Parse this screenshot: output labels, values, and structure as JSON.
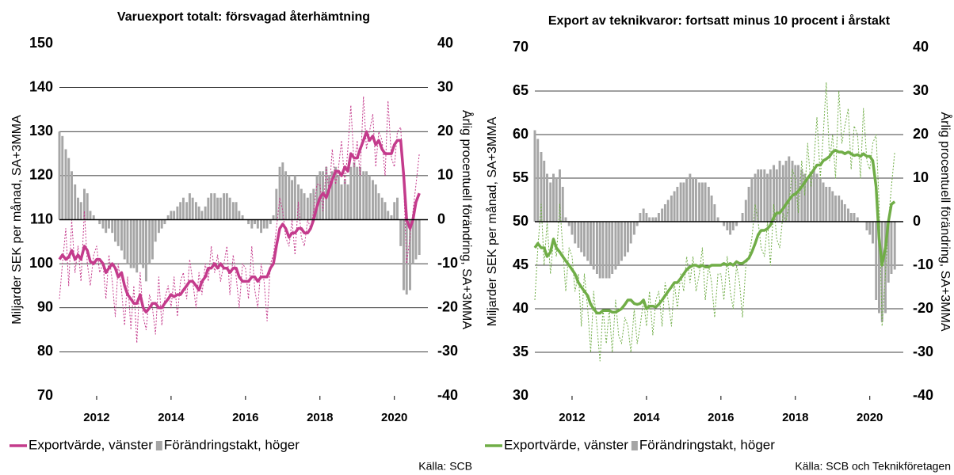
{
  "chart_data": [
    {
      "type": "combo",
      "title": "Varuexport totalt: försvagad återhämtning",
      "ylabel": "Miljarder SEK per månad, SA+3MMA",
      "y2label": "Årlig procentuell förändring, SA+3MMA",
      "source": "Källa: SCB",
      "xlim": [
        2011,
        2020.9
      ],
      "xticks": [
        2012,
        2014,
        2016,
        2018,
        2020
      ],
      "ylim": [
        70,
        150
      ],
      "yticks": [
        70,
        80,
        90,
        100,
        110,
        120,
        130,
        140,
        150
      ],
      "y2lim": [
        -40,
        40
      ],
      "y2ticks": [
        -40,
        -30,
        -20,
        -10,
        0,
        10,
        20,
        30,
        40
      ],
      "grid": true,
      "x": [
        2011,
        2011.08,
        2011.17,
        2011.25,
        2011.33,
        2011.42,
        2011.5,
        2011.58,
        2011.67,
        2011.75,
        2011.83,
        2011.92,
        2012,
        2012.08,
        2012.17,
        2012.25,
        2012.33,
        2012.42,
        2012.5,
        2012.58,
        2012.67,
        2012.75,
        2012.83,
        2012.92,
        2013,
        2013.08,
        2013.17,
        2013.25,
        2013.33,
        2013.42,
        2013.5,
        2013.58,
        2013.67,
        2013.75,
        2013.83,
        2013.92,
        2014,
        2014.08,
        2014.17,
        2014.25,
        2014.33,
        2014.42,
        2014.5,
        2014.58,
        2014.67,
        2014.75,
        2014.83,
        2014.92,
        2015,
        2015.08,
        2015.17,
        2015.25,
        2015.33,
        2015.42,
        2015.5,
        2015.58,
        2015.67,
        2015.75,
        2015.83,
        2015.92,
        2016,
        2016.08,
        2016.17,
        2016.25,
        2016.33,
        2016.42,
        2016.5,
        2016.58,
        2016.67,
        2016.75,
        2016.83,
        2016.92,
        2017,
        2017.08,
        2017.17,
        2017.25,
        2017.33,
        2017.42,
        2017.5,
        2017.58,
        2017.67,
        2017.75,
        2017.83,
        2017.92,
        2018,
        2018.08,
        2018.17,
        2018.25,
        2018.33,
        2018.42,
        2018.5,
        2018.58,
        2018.67,
        2018.75,
        2018.83,
        2018.92,
        2019,
        2019.08,
        2019.17,
        2019.25,
        2019.33,
        2019.42,
        2019.5,
        2019.58,
        2019.67,
        2019.75,
        2019.83,
        2019.92,
        2020,
        2020.08,
        2020.17,
        2020.25,
        2020.33,
        2020.42,
        2020.5,
        2020.58,
        2020.67
      ],
      "series": [
        {
          "name": "Exportvärde, vänster",
          "color": "#c43b8c",
          "kind": "line",
          "values": [
            101,
            102,
            101,
            101.5,
            103,
            101,
            102,
            101,
            104,
            103,
            100.5,
            100,
            101,
            101,
            100,
            98,
            99,
            100,
            99,
            97,
            98,
            95,
            93,
            92,
            91,
            91,
            93,
            90,
            89,
            90,
            91,
            91,
            90,
            90,
            91,
            92,
            93,
            92.5,
            93,
            93,
            94,
            95,
            96,
            96,
            95,
            94,
            96,
            97,
            99,
            99,
            100,
            99,
            100,
            99,
            99,
            98,
            99,
            99,
            97,
            96,
            96,
            96,
            97,
            97,
            96,
            97,
            97,
            97,
            99,
            100,
            104,
            108,
            109,
            108,
            106,
            107,
            107,
            108,
            108,
            107,
            107,
            108,
            110,
            113,
            115,
            116,
            115,
            117,
            119,
            121,
            121,
            120,
            122,
            121,
            125,
            124,
            124,
            126,
            128,
            130,
            128,
            129,
            127,
            128,
            126,
            125,
            125,
            125,
            127,
            128,
            128,
            120,
            110,
            108,
            110,
            114,
            116
          ]
        },
        {
          "name": "Förändringstakt, höger",
          "color": "#a6a6a6",
          "kind": "bar",
          "axis": "y2",
          "values": [
            20,
            19,
            16,
            14,
            11,
            8,
            5,
            4,
            7,
            6,
            2,
            1,
            0,
            -1,
            -2,
            -3,
            -2,
            -3,
            -5,
            -6,
            -7,
            -9,
            -10,
            -11,
            -11,
            -12,
            -10,
            -11,
            -14,
            -10,
            -9,
            -5,
            -3,
            -2,
            -1,
            1,
            2,
            2,
            3,
            4,
            5,
            4,
            6,
            5,
            4,
            3,
            2,
            3,
            5,
            6,
            6,
            5,
            5,
            6,
            6,
            5,
            4,
            4,
            2,
            1,
            0,
            -1,
            -2,
            -1,
            -2,
            -3,
            -2,
            -2,
            -1,
            1,
            7,
            12,
            13,
            11,
            10,
            9,
            10,
            8,
            7,
            6,
            5,
            6,
            7,
            10,
            11,
            11,
            12,
            10,
            11,
            12,
            10,
            8,
            9,
            8,
            12,
            13,
            12,
            12,
            11,
            11,
            10,
            9,
            8,
            6,
            5,
            4,
            2,
            1,
            4,
            5,
            -6,
            -16,
            -17,
            -16,
            -10,
            -9,
            -8
          ]
        },
        {
          "color": "#c43b8c",
          "kind": "dotted",
          "values": [
            92,
            100,
            108,
            95,
            110,
            98,
            104,
            96,
            112,
            100,
            95,
            102,
            104,
            98,
            100,
            92,
            102,
            96,
            88,
            100,
            94,
            86,
            97,
            85,
            95,
            82,
            98,
            88,
            85,
            93,
            90,
            84,
            97,
            86,
            92,
            95,
            90,
            97,
            88,
            96,
            98,
            92,
            101,
            96,
            90,
            98,
            93,
            100,
            96,
            104,
            98,
            102,
            96,
            100,
            104,
            93,
            102,
            97,
            90,
            100,
            99,
            92,
            104,
            94,
            90,
            100,
            96,
            87,
            100,
            102,
            108,
            115,
            112,
            106,
            104,
            110,
            102,
            114,
            106,
            104,
            110,
            108,
            112,
            118,
            118,
            112,
            122,
            116,
            126,
            118,
            122,
            128,
            118,
            126,
            136,
            122,
            128,
            120,
            138,
            126,
            130,
            134,
            122,
            130,
            128,
            120,
            137,
            124,
            122,
            130,
            131,
            118,
            100,
            106,
            112,
            118,
            125
          ]
        }
      ]
    },
    {
      "type": "combo",
      "title": "Export av teknikvaror: fortsatt minus 10 procent i årstakt",
      "ylabel": "Miljarder SEK per månad, SA+3MMA",
      "y2label": "Årlig procentuell förändring, SA+3MMA",
      "source": "Källa: SCB och Teknikföretagen",
      "xlim": [
        2011,
        2020.9
      ],
      "xticks": [
        2012,
        2014,
        2016,
        2018,
        2020
      ],
      "ylim": [
        30,
        70
      ],
      "yticks": [
        30,
        35,
        40,
        45,
        50,
        55,
        60,
        65,
        70
      ],
      "y2lim": [
        -40,
        40
      ],
      "y2ticks": [
        -40,
        -30,
        -20,
        -10,
        0,
        10,
        20,
        30,
        40
      ],
      "grid": true,
      "x": [
        2011,
        2011.08,
        2011.17,
        2011.25,
        2011.33,
        2011.42,
        2011.5,
        2011.58,
        2011.67,
        2011.75,
        2011.83,
        2011.92,
        2012,
        2012.08,
        2012.17,
        2012.25,
        2012.33,
        2012.42,
        2012.5,
        2012.58,
        2012.67,
        2012.75,
        2012.83,
        2012.92,
        2013,
        2013.08,
        2013.17,
        2013.25,
        2013.33,
        2013.42,
        2013.5,
        2013.58,
        2013.67,
        2013.75,
        2013.83,
        2013.92,
        2014,
        2014.08,
        2014.17,
        2014.25,
        2014.33,
        2014.42,
        2014.5,
        2014.58,
        2014.67,
        2014.75,
        2014.83,
        2014.92,
        2015,
        2015.08,
        2015.17,
        2015.25,
        2015.33,
        2015.42,
        2015.5,
        2015.58,
        2015.67,
        2015.75,
        2015.83,
        2015.92,
        2016,
        2016.08,
        2016.17,
        2016.25,
        2016.33,
        2016.42,
        2016.5,
        2016.58,
        2016.67,
        2016.75,
        2016.83,
        2016.92,
        2017,
        2017.08,
        2017.17,
        2017.25,
        2017.33,
        2017.42,
        2017.5,
        2017.58,
        2017.67,
        2017.75,
        2017.83,
        2017.92,
        2018,
        2018.08,
        2018.17,
        2018.25,
        2018.33,
        2018.42,
        2018.5,
        2018.58,
        2018.67,
        2018.75,
        2018.83,
        2018.92,
        2019,
        2019.08,
        2019.17,
        2019.25,
        2019.33,
        2019.42,
        2019.5,
        2019.58,
        2019.67,
        2019.75,
        2019.83,
        2019.92,
        2020,
        2020.08,
        2020.17,
        2020.25,
        2020.33,
        2020.42,
        2020.5,
        2020.58,
        2020.67
      ],
      "series": [
        {
          "name": "Exportvärde, vänster",
          "color": "#70ad47",
          "kind": "line",
          "values": [
            47,
            47.5,
            47,
            47,
            46,
            46.5,
            48,
            47,
            46.5,
            46,
            45.5,
            45,
            44.5,
            44,
            43,
            42.5,
            42,
            41.5,
            40.5,
            40,
            39.5,
            39.5,
            39.8,
            39.8,
            39.8,
            39.6,
            39.6,
            39.8,
            40,
            40.5,
            41,
            41,
            40.6,
            40.5,
            40.6,
            41,
            40,
            40.3,
            40.3,
            40.2,
            40.5,
            41,
            41.5,
            42,
            42.5,
            43,
            43,
            43.5,
            44,
            44.5,
            44.8,
            45,
            45,
            44.8,
            45,
            44.8,
            44.8,
            45,
            45,
            45,
            45,
            45.2,
            45,
            45.2,
            45,
            45.4,
            45.2,
            45.2,
            45.5,
            45.8,
            46.5,
            47.5,
            48.5,
            49,
            49,
            49.2,
            49.6,
            50.5,
            51,
            51,
            51.5,
            52,
            52.5,
            53,
            53.2,
            53.5,
            54,
            54.5,
            55,
            55.5,
            56,
            56.5,
            56.5,
            57,
            57.2,
            57.5,
            58,
            58.2,
            58,
            58,
            57.8,
            58,
            57.8,
            57.6,
            57.7,
            57.5,
            57.8,
            57.5,
            57.5,
            57,
            54,
            48,
            45,
            47,
            50,
            52,
            52.3
          ]
        },
        {
          "name": "Förändringstakt, höger",
          "color": "#a6a6a6",
          "kind": "bar",
          "axis": "y2",
          "values": [
            21,
            19,
            16,
            14,
            11,
            9,
            11,
            10,
            12,
            8,
            1,
            -1,
            -3,
            -5,
            -6,
            -7,
            -8,
            -9,
            -10,
            -11,
            -12,
            -13,
            -13,
            -13,
            -13,
            -12,
            -11,
            -10,
            -9,
            -8,
            -7,
            -5,
            -3,
            -1,
            2,
            3,
            2,
            1,
            1,
            1,
            2,
            3,
            4,
            5,
            6,
            7,
            8,
            9,
            9,
            10,
            11,
            10,
            10,
            9,
            9,
            9,
            8,
            6,
            4,
            1,
            0,
            -1,
            -2,
            -3,
            -2,
            -1,
            0,
            2,
            5,
            8,
            10,
            11,
            12,
            12,
            12,
            11,
            12,
            13,
            12,
            14,
            13,
            14,
            15,
            14,
            13,
            13,
            12,
            11,
            10,
            11,
            12,
            11,
            10,
            9,
            8,
            8,
            7,
            6,
            6,
            5,
            4,
            3,
            2,
            2,
            1,
            0,
            0,
            -2,
            -3,
            -5,
            -18,
            -21,
            -23,
            -21,
            -14,
            -12,
            -11
          ]
        },
        {
          "color": "#70ad47",
          "kind": "dotted",
          "values": [
            41,
            47,
            52,
            45,
            50,
            44,
            48,
            46,
            52,
            47,
            42,
            47,
            46,
            42,
            44,
            38,
            44,
            40,
            35,
            42,
            38,
            34,
            40,
            36,
            40,
            35,
            41,
            37,
            36,
            39,
            38,
            35,
            40,
            36,
            38,
            41,
            38,
            42,
            37,
            41,
            42,
            38,
            43,
            41,
            38,
            43,
            40,
            44,
            42,
            46,
            43,
            46,
            42,
            44,
            47,
            41,
            45,
            43,
            39,
            44,
            44,
            41,
            46,
            42,
            40,
            45,
            43,
            39,
            45,
            46,
            48,
            52,
            50,
            47,
            46,
            50,
            45,
            52,
            48,
            47,
            51,
            50,
            52,
            56,
            55,
            51,
            57,
            53,
            59,
            54,
            57,
            62,
            55,
            60,
            66,
            57,
            60,
            55,
            65,
            59,
            61,
            63,
            56,
            61,
            60,
            55,
            63,
            57,
            56,
            59,
            60,
            52,
            38,
            44,
            50,
            54,
            58
          ]
        }
      ]
    }
  ]
}
